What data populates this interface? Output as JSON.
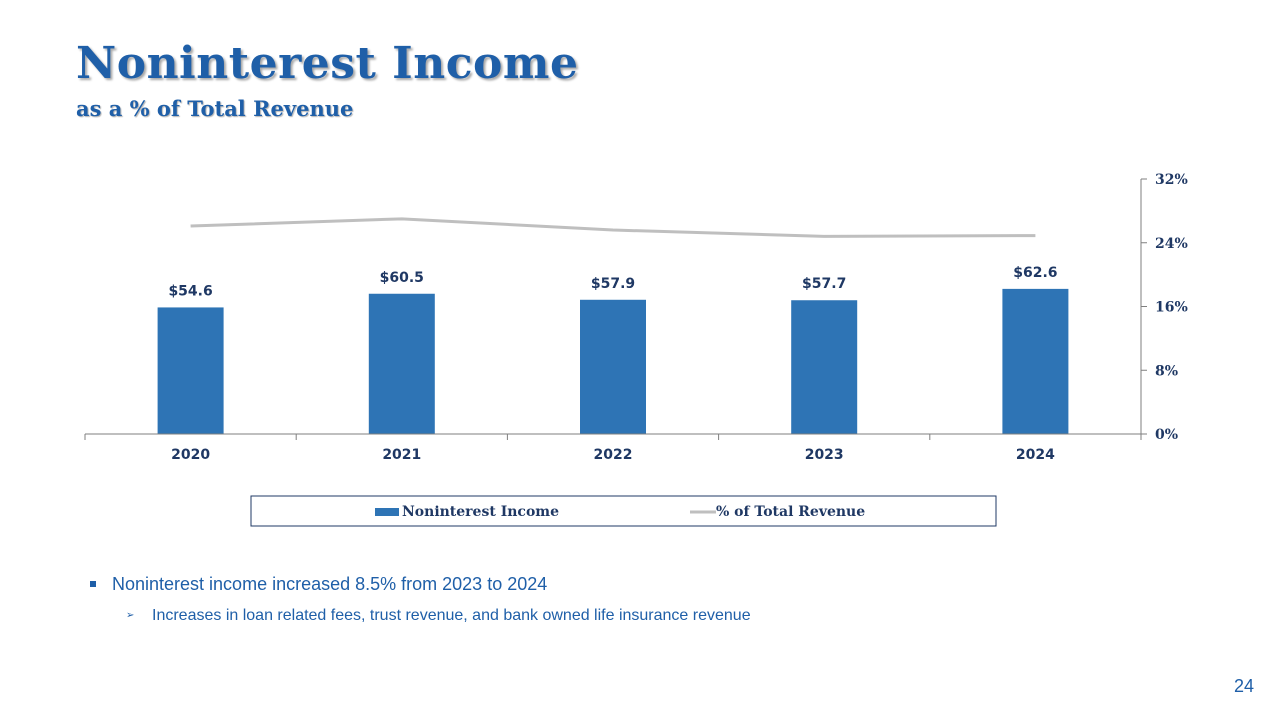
{
  "slide": {
    "title": "Noninterest Income",
    "subtitle": "as a % of Total Revenue",
    "page_number": "24"
  },
  "bullets": {
    "main": "Noninterest income increased 8.5% from 2023 to 2024",
    "sub": "Increases in loan related fees, trust revenue, and bank owned life insurance revenue"
  },
  "colors": {
    "title": "#1F5FA8",
    "bar": "#2E74B5",
    "line": "#BFBFBF",
    "text": "#1F3864"
  },
  "chart_data": {
    "type": "bar",
    "categories": [
      "2020",
      "2021",
      "2022",
      "2023",
      "2024"
    ],
    "series": [
      {
        "name": "Noninterest Income",
        "type": "bar",
        "axis": "left",
        "values": [
          54.6,
          60.5,
          57.9,
          57.7,
          62.6
        ],
        "labels": [
          "$54.6",
          "$60.5",
          "$57.9",
          "$57.7",
          "$62.6"
        ]
      },
      {
        "name": "% of Total Revenue",
        "type": "line",
        "axis": "right",
        "values": [
          26.1,
          27.0,
          25.6,
          24.8,
          24.9
        ]
      }
    ],
    "y_left_lim": [
      0,
      110
    ],
    "y_right_lim": [
      0,
      32
    ],
    "y_right_ticks": [
      "0%",
      "8%",
      "16%",
      "24%",
      "32%"
    ],
    "y_right_tick_values": [
      0,
      8,
      16,
      24,
      32
    ],
    "legend": "bottom",
    "grid": false
  }
}
